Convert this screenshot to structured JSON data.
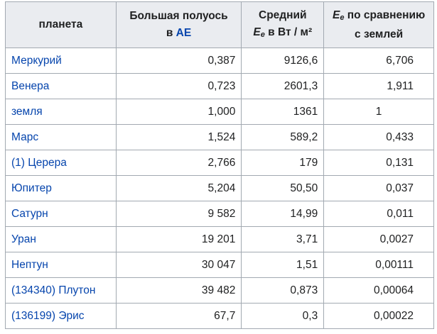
{
  "headers": {
    "col1": "планета",
    "col2_line1": "Большая полуось",
    "col2_line2_prefix": "в ",
    "col2_line2_link": "АЕ",
    "col3_line1": "Средний",
    "col3_E": "E",
    "col3_sub": "e",
    "col3_unit": " в Вт / м²",
    "col4_E": "E",
    "col4_sub": "e",
    "col4_rest": " по сравнению",
    "col4_line2": "с землей"
  },
  "rows": [
    {
      "name": "Меркурий",
      "axis": "0,387",
      "irradiance": "9126,6",
      "ratio": "6,706"
    },
    {
      "name": "Венера",
      "axis": "0,723",
      "irradiance": "2601,3",
      "ratio": "1,911"
    },
    {
      "name": "земля",
      "axis": "1,000",
      "irradiance": "1361",
      "ratio": "1"
    },
    {
      "name": "Марс",
      "axis": "1,524",
      "irradiance": "589,2",
      "ratio": "0,433"
    },
    {
      "name": "(1) Церера",
      "axis": "2,766",
      "irradiance": "179",
      "ratio": "0,131"
    },
    {
      "name": "Юпитер",
      "axis": "5,204",
      "irradiance": "50,50",
      "ratio": "0,037"
    },
    {
      "name": "Сатурн",
      "axis": "9 582",
      "irradiance": "14,99",
      "ratio": "0,011"
    },
    {
      "name": "Уран",
      "axis": "19 201",
      "irradiance": "3,71",
      "ratio": "0,0027"
    },
    {
      "name": "Нептун",
      "axis": "30 047",
      "irradiance": "1,51",
      "ratio": "0,00111"
    },
    {
      "name": "(134340) Плутон",
      "axis": "39 482",
      "irradiance": "0,873",
      "ratio": "0,00064"
    },
    {
      "name": "(136199) Эрис",
      "axis": "67,7",
      "irradiance": "0,3",
      "ratio": "0,00022"
    }
  ]
}
